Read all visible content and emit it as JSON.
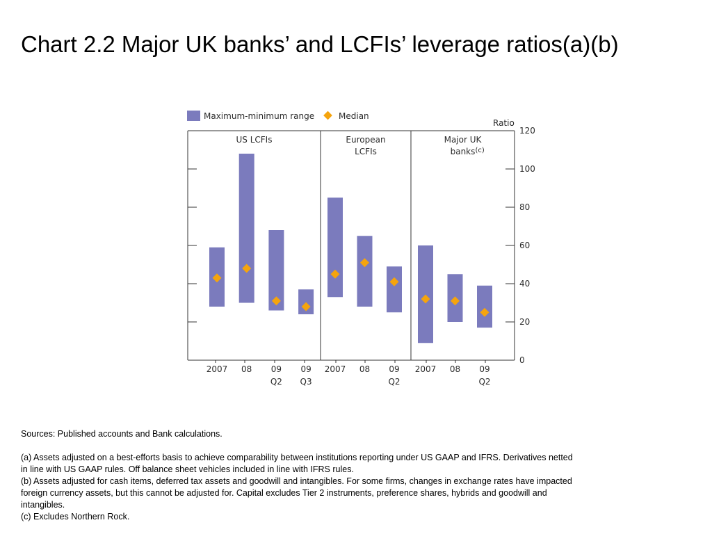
{
  "slide": {
    "title": "Chart 2.2  Major UK banks’ and LCFIs’ leverage ratios(a)(b)"
  },
  "chart_data": {
    "type": "range-bar",
    "ylabel": "Ratio",
    "ylim": [
      0,
      120
    ],
    "yticks": [
      0,
      20,
      40,
      60,
      80,
      100,
      120
    ],
    "axis_side": "right",
    "legend_placement": "top-left",
    "legend": {
      "range": "Maximum-minimum range",
      "median": "Median"
    },
    "colors": {
      "range": "#7b7bbd",
      "median": "#f5a40d",
      "axis": "#333333"
    },
    "panels": [
      {
        "name": "US LCFIs",
        "name_sup": "",
        "bars": [
          {
            "x_label": "2007",
            "x_sub": "",
            "min": 28,
            "max": 59,
            "median": 43
          },
          {
            "x_label": "08",
            "x_sub": "",
            "min": 30,
            "max": 108,
            "median": 48
          },
          {
            "x_label": "09",
            "x_sub": "Q2",
            "min": 26,
            "max": 68,
            "median": 31
          },
          {
            "x_label": "09",
            "x_sub": "Q3",
            "min": 24,
            "max": 37,
            "median": 28
          }
        ]
      },
      {
        "name": "European\nLCFIs",
        "name_sup": "",
        "bars": [
          {
            "x_label": "2007",
            "x_sub": "",
            "min": 33,
            "max": 85,
            "median": 45
          },
          {
            "x_label": "08",
            "x_sub": "",
            "min": 28,
            "max": 65,
            "median": 51
          },
          {
            "x_label": "09",
            "x_sub": "Q2",
            "min": 25,
            "max": 49,
            "median": 41
          }
        ]
      },
      {
        "name": "Major UK\nbanks",
        "name_sup": "(c)",
        "bars": [
          {
            "x_label": "2007",
            "x_sub": "",
            "min": 9,
            "max": 60,
            "median": 32
          },
          {
            "x_label": "08",
            "x_sub": "",
            "min": 20,
            "max": 45,
            "median": 31
          },
          {
            "x_label": "09",
            "x_sub": "Q2",
            "min": 17,
            "max": 39,
            "median": 25
          }
        ]
      }
    ]
  },
  "notes": {
    "sources": "Sources:  Published accounts and Bank calculations.",
    "a_1": "(a)  Assets adjusted on a best-efforts basis to achieve comparability between institutions reporting under US GAAP and IFRS.  Derivatives netted",
    "a_2": "in line with US GAAP rules.  Off balance sheet vehicles included in line with IFRS rules.",
    "b_1": "(b)  Assets adjusted for cash items, deferred tax assets and goodwill and intangibles.  For some firms, changes in exchange rates have impacted",
    "b_2": "foreign currency assets, but this cannot be adjusted for.  Capital excludes Tier 2 instruments, preference shares, hybrids and goodwill and",
    "b_3": "intangibles.",
    "c": "(c)  Excludes Northern Rock."
  }
}
